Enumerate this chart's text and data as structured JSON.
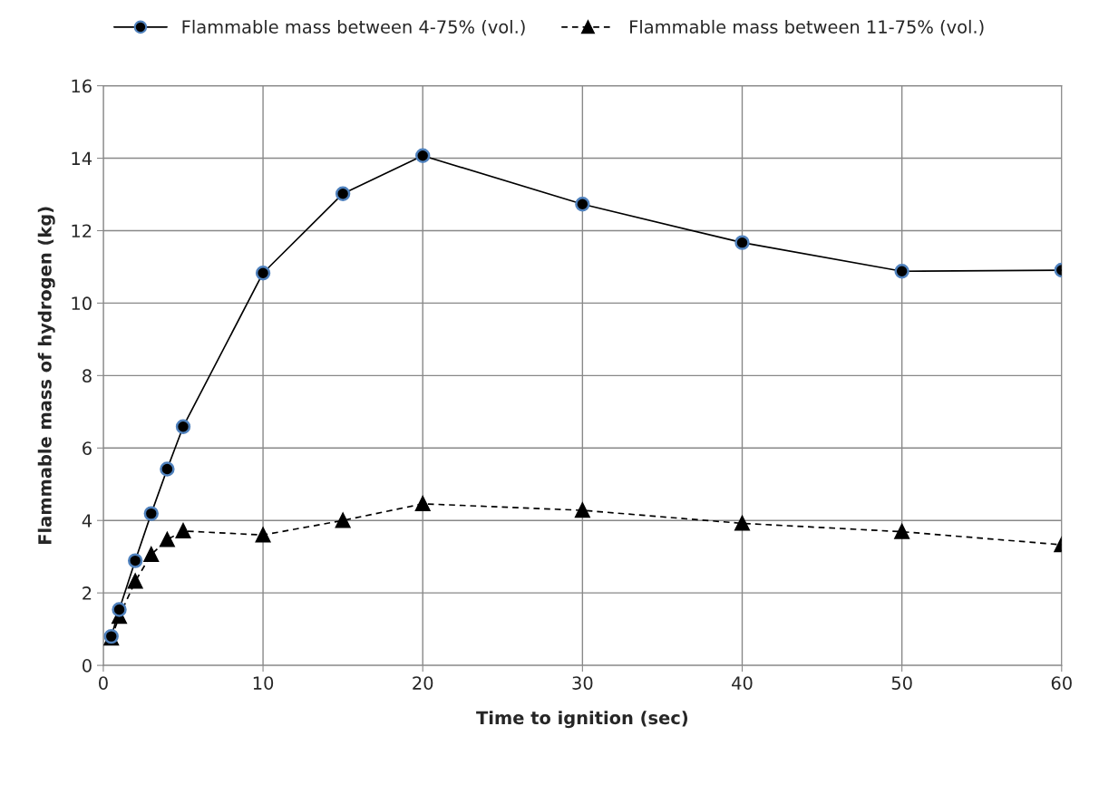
{
  "chart_data": {
    "type": "line",
    "xlabel": "Time to ignition (sec)",
    "ylabel": "Flammable mass of hydrogen (kg)",
    "x": [
      0.5,
      1,
      2,
      3,
      4,
      5,
      10,
      15,
      20,
      30,
      40,
      50,
      60
    ],
    "series": [
      {
        "name": "Flammable mass between 4-75% (vol.)",
        "color": "#000000",
        "marker": "circle",
        "line_style": "solid",
        "values": [
          0.8,
          1.54,
          2.89,
          4.19,
          5.42,
          6.59,
          10.83,
          13.02,
          14.07,
          12.73,
          11.67,
          10.88,
          10.91
        ]
      },
      {
        "name": "Flammable mass between 11-75% (vol.)",
        "color": "#000000",
        "marker": "triangle",
        "line_style": "dashed",
        "values": [
          0.75,
          1.35,
          2.32,
          3.06,
          3.47,
          3.71,
          3.6,
          4.0,
          4.46,
          4.28,
          3.92,
          3.69,
          3.33
        ]
      }
    ],
    "xlim": [
      0,
      60
    ],
    "xticks": [
      0,
      10,
      20,
      30,
      40,
      50,
      60
    ],
    "ylim": [
      0,
      16
    ],
    "yticks": [
      0,
      2,
      4,
      6,
      8,
      10,
      12,
      14,
      16
    ],
    "grid": true,
    "legend": "top"
  }
}
